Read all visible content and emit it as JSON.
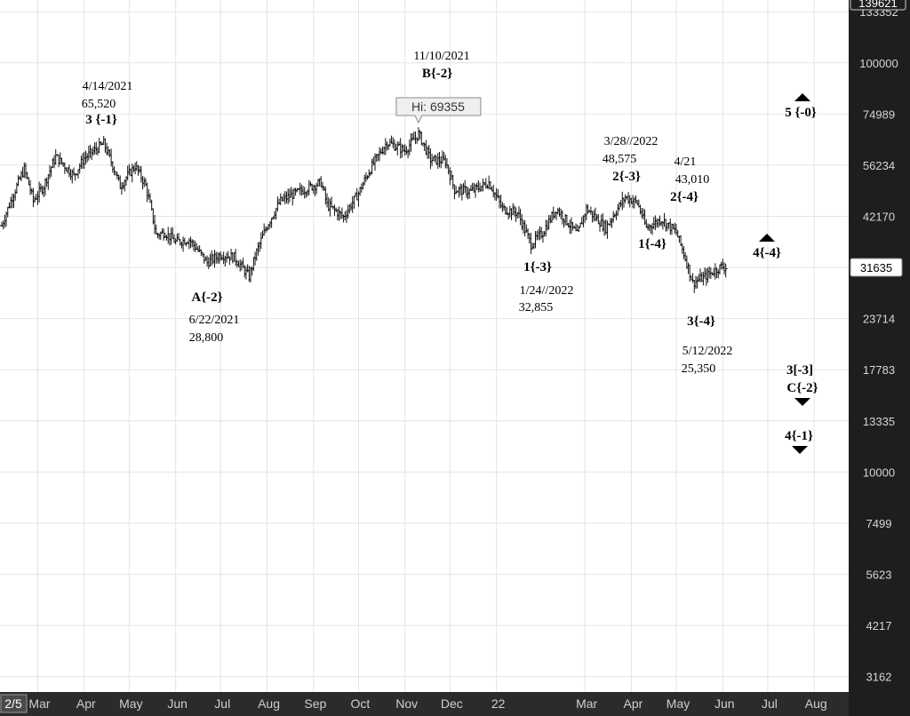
{
  "chart_data": {
    "type": "bar",
    "subtype": "ohlc-price",
    "y_scale": "log",
    "ylim": [
      2900,
      139621
    ],
    "grid": true,
    "y_ticks": [
      {
        "value": 133352,
        "label": "133352"
      },
      {
        "value": 100000,
        "label": "100000"
      },
      {
        "value": 74989,
        "label": "74989"
      },
      {
        "value": 56234,
        "label": "56234"
      },
      {
        "value": 42170,
        "label": "42170"
      },
      {
        "value": 31623,
        "label": "31623"
      },
      {
        "value": 23714,
        "label": "23714"
      },
      {
        "value": 17783,
        "label": "17783"
      },
      {
        "value": 13335,
        "label": "13335"
      },
      {
        "value": 10000,
        "label": "10000"
      },
      {
        "value": 7499,
        "label": "7499"
      },
      {
        "value": 5623,
        "label": "5623"
      },
      {
        "value": 4217,
        "label": "4217"
      },
      {
        "value": 3162,
        "label": "3162"
      }
    ],
    "top_price_label": "139621",
    "current_price_label": "31635",
    "current_price": 31635,
    "x_ticks": [
      {
        "label": "2/5",
        "date": "2021-02-05"
      },
      {
        "label": "Mar",
        "date": "2021-03-01"
      },
      {
        "label": "Apr",
        "date": "2021-04-01"
      },
      {
        "label": "May",
        "date": "2021-05-01"
      },
      {
        "label": "Jun",
        "date": "2021-06-01"
      },
      {
        "label": "Jul",
        "date": "2021-07-01"
      },
      {
        "label": "Aug",
        "date": "2021-08-01"
      },
      {
        "label": "Sep",
        "date": "2021-09-01"
      },
      {
        "label": "Oct",
        "date": "2021-10-01"
      },
      {
        "label": "Nov",
        "date": "2021-11-01"
      },
      {
        "label": "Dec",
        "date": "2021-12-01"
      },
      {
        "label": "22",
        "date": "2022-01-01"
      },
      {
        "label": "Mar",
        "date": "2022-03-01"
      },
      {
        "label": "Apr",
        "date": "2022-04-01"
      },
      {
        "label": "May",
        "date": "2022-05-01"
      },
      {
        "label": "Jun",
        "date": "2022-06-01"
      },
      {
        "label": "Jul",
        "date": "2022-07-01"
      },
      {
        "label": "Aug",
        "date": "2022-08-01"
      }
    ],
    "xlim": [
      "2021-02-05",
      "2022-08-24"
    ],
    "price_path": [
      [
        "2021-02-05",
        40000
      ],
      [
        "2021-02-12",
        47000
      ],
      [
        "2021-02-20",
        55000
      ],
      [
        "2021-02-26",
        46000
      ],
      [
        "2021-03-05",
        50000
      ],
      [
        "2021-03-13",
        59000
      ],
      [
        "2021-03-25",
        53000
      ],
      [
        "2021-04-01",
        58500
      ],
      [
        "2021-04-14",
        63500
      ],
      [
        "2021-04-25",
        50000
      ],
      [
        "2021-05-05",
        56000
      ],
      [
        "2021-05-12",
        50000
      ],
      [
        "2021-05-19",
        38000
      ],
      [
        "2021-05-25",
        38500
      ],
      [
        "2021-06-01",
        36500
      ],
      [
        "2021-06-10",
        37000
      ],
      [
        "2021-06-22",
        32500
      ],
      [
        "2021-07-01",
        34000
      ],
      [
        "2021-07-10",
        33500
      ],
      [
        "2021-07-20",
        30000
      ],
      [
        "2021-07-25",
        34500
      ],
      [
        "2021-08-01",
        40000
      ],
      [
        "2021-08-10",
        46000
      ],
      [
        "2021-08-20",
        48000
      ],
      [
        "2021-09-06",
        51000
      ],
      [
        "2021-09-10",
        45000
      ],
      [
        "2021-09-21",
        42000
      ],
      [
        "2021-10-01",
        48000
      ],
      [
        "2021-10-10",
        56000
      ],
      [
        "2021-10-20",
        64000
      ],
      [
        "2021-11-01",
        61000
      ],
      [
        "2021-11-10",
        67000
      ],
      [
        "2021-11-18",
        58000
      ],
      [
        "2021-11-28",
        57500
      ],
      [
        "2021-12-04",
        49000
      ],
      [
        "2021-12-15",
        48500
      ],
      [
        "2021-12-27",
        51000
      ],
      [
        "2022-01-05",
        44000
      ],
      [
        "2022-01-15",
        43000
      ],
      [
        "2022-01-24",
        36000
      ],
      [
        "2022-02-01",
        38500
      ],
      [
        "2022-02-10",
        44000
      ],
      [
        "2022-02-24",
        38000
      ],
      [
        "2022-03-02",
        44000
      ],
      [
        "2022-03-15",
        39500
      ],
      [
        "2022-03-28",
        47000
      ],
      [
        "2022-04-05",
        45500
      ],
      [
        "2022-04-11",
        39500
      ],
      [
        "2022-04-21",
        41500
      ],
      [
        "2022-05-01",
        38500
      ],
      [
        "2022-05-12",
        29000
      ],
      [
        "2022-05-20",
        30000
      ],
      [
        "2022-05-31",
        31800
      ],
      [
        "2022-06-03",
        31635
      ]
    ],
    "annotations": [
      {
        "name": "annotation-apr14",
        "date": "2021-04-14",
        "lines": [
          "4/14/2021",
          "65,520",
          "3 {-1}"
        ]
      },
      {
        "name": "annotation-jun22",
        "date": "2021-06-22",
        "lines": [
          "A{-2}",
          "6/22/2021",
          "28,800"
        ]
      },
      {
        "name": "annotation-nov10",
        "date": "2021-11-10",
        "lines": [
          "11/10/2021",
          "B{-2}"
        ]
      },
      {
        "name": "annotation-jan24",
        "date": "2022-01-24",
        "lines": [
          "1{-3}",
          "1/24//2022",
          "32,855"
        ]
      },
      {
        "name": "annotation-mar28",
        "date": "2022-03-28",
        "lines": [
          "3/28//2022",
          "48,575",
          "2{-3}"
        ]
      },
      {
        "name": "annotation-apr21",
        "date": "2022-04-21",
        "lines": [
          "4/21",
          "43,010",
          "2{-4}"
        ]
      },
      {
        "name": "annotation-apr-wave1",
        "date": "2022-04-11",
        "lines": [
          "1{-4}"
        ]
      },
      {
        "name": "annotation-may12",
        "date": "2022-05-12",
        "lines": [
          "3{-4}",
          "5/12/2022",
          "25,350"
        ]
      }
    ],
    "hi_label": "Hi: 69355",
    "hi_value": 69355,
    "projections": [
      {
        "name": "projection-5-0",
        "label": "5 {-0}",
        "direction": "up"
      },
      {
        "name": "projection-4-4",
        "label": "4{-4}",
        "direction": "up"
      },
      {
        "name": "projection-3-3-c-2",
        "label": "3[-3]",
        "label2": "C{-2}",
        "direction": "down"
      },
      {
        "name": "projection-4-1",
        "label": "4{-1}",
        "direction": "down"
      }
    ]
  }
}
